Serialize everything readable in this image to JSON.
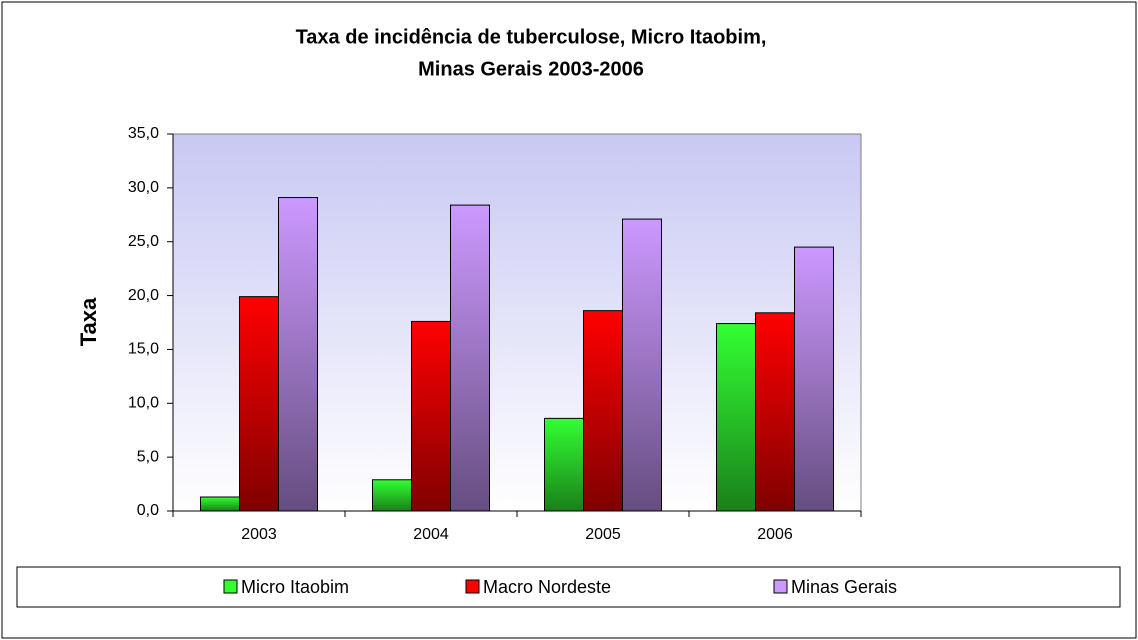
{
  "chart_data": {
    "type": "bar",
    "title": [
      "Taxa de incidência  de tuberculose, Micro  Itaobim,",
      "Minas Gerais 2003-2006"
    ],
    "ylabel": "Taxa",
    "categories": [
      "2003",
      "2004",
      "2005",
      "2006"
    ],
    "series": [
      {
        "name": "Micro Itaobim",
        "color": "#33ff33",
        "values": [
          1.3,
          2.9,
          8.6,
          17.4
        ]
      },
      {
        "name": "Macro Nordeste",
        "color": "#ff0000",
        "values": [
          19.9,
          17.6,
          18.6,
          18.4
        ]
      },
      {
        "name": "Minas Gerais",
        "color": "#cc99ff",
        "values": [
          29.1,
          28.4,
          27.1,
          24.5
        ]
      }
    ],
    "ylim": [
      0,
      35
    ],
    "yticks": [
      {
        "value": 0,
        "label": "0,0"
      },
      {
        "value": 5,
        "label": "5,0"
      },
      {
        "value": 10,
        "label": "10,0"
      },
      {
        "value": 15,
        "label": "15,0"
      },
      {
        "value": 20,
        "label": "20,0"
      },
      {
        "value": 25,
        "label": "25,0"
      },
      {
        "value": 30,
        "label": "30,0"
      },
      {
        "value": 35,
        "label": "35,0"
      }
    ],
    "grid": false,
    "legend": "bottom"
  }
}
